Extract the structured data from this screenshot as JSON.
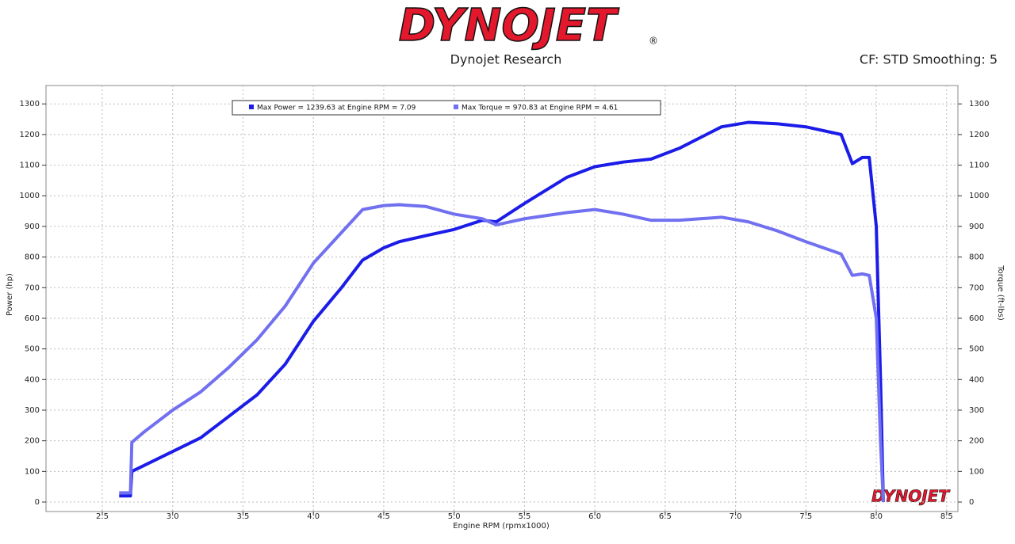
{
  "chart_data": {
    "type": "line",
    "logo": "DYNOJET",
    "logo_mark": "®",
    "title": "Dynojet Research",
    "subtitle": "CF: STD Smoothing: 5",
    "x_label": "Engine RPM (rpmx1000)",
    "y_label": "Power (hp)",
    "y2_label": "Torque (ft-lbs)",
    "grid": true,
    "x": [
      2.62,
      2.7,
      2.71,
      2.8,
      3.0,
      3.2,
      3.4,
      3.6,
      3.8,
      4.0,
      4.2,
      4.35,
      4.5,
      4.61,
      4.8,
      5.0,
      5.2,
      5.3,
      5.5,
      5.8,
      6.0,
      6.2,
      6.4,
      6.6,
      6.9,
      7.09,
      7.3,
      7.5,
      7.75,
      7.83,
      7.9,
      7.95,
      8.0,
      8.03,
      8.05
    ],
    "series": [
      {
        "name": "Max Power = 1239.63 at Engine RPM = 7.09",
        "color": "#1c1ce8",
        "values": [
          20,
          20,
          100,
          120,
          165,
          210,
          280,
          350,
          450,
          590,
          700,
          790,
          830,
          850,
          870,
          890,
          920,
          915,
          975,
          1060,
          1095,
          1110,
          1120,
          1155,
          1225,
          1239.63,
          1235,
          1225,
          1200,
          1105,
          1125,
          1125,
          900,
          400,
          0
        ]
      },
      {
        "name": "Max Torque = 970.83 at Engine RPM = 4.61",
        "color": "#7070f0",
        "axis": "y2",
        "values": [
          30,
          30,
          195,
          230,
          300,
          360,
          440,
          530,
          640,
          780,
          880,
          955,
          968,
          970.83,
          965,
          940,
          925,
          905,
          925,
          945,
          955,
          940,
          920,
          920,
          930,
          915,
          885,
          850,
          810,
          740,
          745,
          740,
          600,
          200,
          0
        ]
      }
    ],
    "xlim": [
      2.1,
      8.58
    ],
    "xticks": [
      2.5,
      {
        "value": 3,
        "label": "3.0"
      },
      3.5,
      {
        "value": 4,
        "label": "4.0"
      },
      4.5,
      {
        "value": 5,
        "label": "5.0"
      },
      5.5,
      {
        "value": 6,
        "label": "6.0"
      },
      6.5,
      {
        "value": 7,
        "label": "7.0"
      },
      7.5,
      {
        "value": 8,
        "label": "8.0"
      },
      8.5
    ],
    "ylim": [
      -31,
      1360
    ],
    "yticks": [
      0,
      100,
      200,
      300,
      400,
      500,
      600,
      700,
      800,
      900,
      1000,
      1100,
      1200,
      1300
    ],
    "y2lim": [
      -31,
      1360
    ],
    "y2ticks": [
      0,
      100,
      200,
      300,
      400,
      500,
      600,
      700,
      800,
      900,
      1000,
      1100,
      1200,
      1300
    ]
  }
}
